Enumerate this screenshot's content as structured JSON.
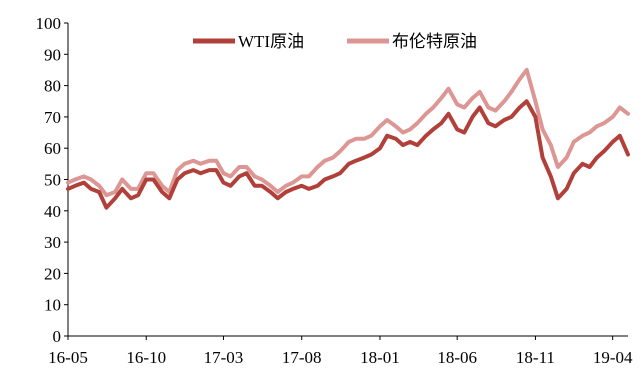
{
  "chart_data": {
    "type": "line",
    "title": "",
    "xlabel": "",
    "ylabel": "",
    "ylim": [
      0,
      100
    ],
    "yticks": [
      0,
      10,
      20,
      30,
      40,
      50,
      60,
      70,
      80,
      90,
      100
    ],
    "xlim": [
      "2016-05",
      "2019-05"
    ],
    "xticks": [
      "16-05",
      "16-10",
      "17-03",
      "17-08",
      "18-01",
      "18-06",
      "18-11",
      "19-04"
    ],
    "grid": false,
    "legend": "top-center",
    "series": [
      {
        "name": "WTI原油",
        "color": "#b2403a",
        "x": [
          "2016-05-01",
          "2016-05-15",
          "2016-06-01",
          "2016-06-15",
          "2016-07-01",
          "2016-07-15",
          "2016-08-01",
          "2016-08-15",
          "2016-09-01",
          "2016-09-15",
          "2016-10-01",
          "2016-10-15",
          "2016-11-01",
          "2016-11-15",
          "2016-12-01",
          "2016-12-15",
          "2017-01-01",
          "2017-01-15",
          "2017-02-01",
          "2017-02-15",
          "2017-03-01",
          "2017-03-15",
          "2017-04-01",
          "2017-04-15",
          "2017-05-01",
          "2017-05-15",
          "2017-06-01",
          "2017-06-15",
          "2017-07-01",
          "2017-07-15",
          "2017-08-01",
          "2017-08-15",
          "2017-09-01",
          "2017-09-15",
          "2017-10-01",
          "2017-10-15",
          "2017-11-01",
          "2017-11-15",
          "2017-12-01",
          "2017-12-15",
          "2018-01-01",
          "2018-01-15",
          "2018-02-01",
          "2018-02-15",
          "2018-03-01",
          "2018-03-15",
          "2018-04-01",
          "2018-04-15",
          "2018-05-01",
          "2018-05-15",
          "2018-06-01",
          "2018-06-15",
          "2018-07-01",
          "2018-07-15",
          "2018-08-01",
          "2018-08-15",
          "2018-09-01",
          "2018-09-15",
          "2018-10-01",
          "2018-10-15",
          "2018-11-01",
          "2018-11-15",
          "2018-12-01",
          "2018-12-15",
          "2019-01-01",
          "2019-01-15",
          "2019-02-01",
          "2019-02-15",
          "2019-03-01",
          "2019-03-15",
          "2019-04-01",
          "2019-04-15",
          "2019-05-01"
        ],
        "values": [
          47,
          48,
          49,
          47,
          46,
          41,
          44,
          47,
          44,
          45,
          50,
          50,
          46,
          44,
          50,
          52,
          53,
          52,
          53,
          53,
          49,
          48,
          51,
          52,
          48,
          48,
          46,
          44,
          46,
          47,
          48,
          47,
          48,
          50,
          51,
          52,
          55,
          56,
          57,
          58,
          60,
          64,
          63,
          61,
          62,
          61,
          64,
          66,
          68,
          71,
          66,
          65,
          70,
          73,
          68,
          67,
          69,
          70,
          73,
          75,
          70,
          57,
          51,
          44,
          47,
          52,
          55,
          54,
          57,
          59,
          62,
          64,
          58
        ]
      },
      {
        "name": "布伦特原油",
        "color": "#dc9693",
        "x": [
          "2016-05-01",
          "2016-05-15",
          "2016-06-01",
          "2016-06-15",
          "2016-07-01",
          "2016-07-15",
          "2016-08-01",
          "2016-08-15",
          "2016-09-01",
          "2016-09-15",
          "2016-10-01",
          "2016-10-15",
          "2016-11-01",
          "2016-11-15",
          "2016-12-01",
          "2016-12-15",
          "2017-01-01",
          "2017-01-15",
          "2017-02-01",
          "2017-02-15",
          "2017-03-01",
          "2017-03-15",
          "2017-04-01",
          "2017-04-15",
          "2017-05-01",
          "2017-05-15",
          "2017-06-01",
          "2017-06-15",
          "2017-07-01",
          "2017-07-15",
          "2017-08-01",
          "2017-08-15",
          "2017-09-01",
          "2017-09-15",
          "2017-10-01",
          "2017-10-15",
          "2017-11-01",
          "2017-11-15",
          "2017-12-01",
          "2017-12-15",
          "2018-01-01",
          "2018-01-15",
          "2018-02-01",
          "2018-02-15",
          "2018-03-01",
          "2018-03-15",
          "2018-04-01",
          "2018-04-15",
          "2018-05-01",
          "2018-05-15",
          "2018-06-01",
          "2018-06-15",
          "2018-07-01",
          "2018-07-15",
          "2018-08-01",
          "2018-08-15",
          "2018-09-01",
          "2018-09-15",
          "2018-10-01",
          "2018-10-15",
          "2018-11-01",
          "2018-11-15",
          "2018-12-01",
          "2018-12-15",
          "2019-01-01",
          "2019-01-15",
          "2019-02-01",
          "2019-02-15",
          "2019-03-01",
          "2019-03-15",
          "2019-04-01",
          "2019-04-15",
          "2019-05-01"
        ],
        "values": [
          49,
          50,
          51,
          50,
          48,
          45,
          46,
          50,
          47,
          47,
          52,
          52,
          48,
          46,
          53,
          55,
          56,
          55,
          56,
          56,
          52,
          51,
          54,
          54,
          51,
          50,
          48,
          46,
          48,
          49,
          51,
          51,
          54,
          56,
          57,
          59,
          62,
          63,
          63,
          64,
          67,
          69,
          67,
          65,
          66,
          68,
          71,
          73,
          76,
          79,
          74,
          73,
          76,
          78,
          73,
          72,
          75,
          78,
          82,
          85,
          75,
          66,
          61,
          54,
          57,
          62,
          64,
          65,
          67,
          68,
          70,
          73,
          71
        ]
      }
    ]
  }
}
